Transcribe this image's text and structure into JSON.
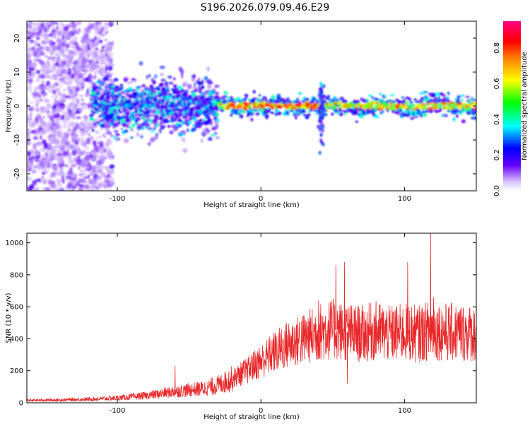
{
  "title": "S196.2026.079.09.46.E29",
  "colors": {
    "snr_line": "#e8282a",
    "axis": "#000000",
    "colormap": [
      "#ff00ff",
      "#6600ff",
      "#0000ff",
      "#00ffff",
      "#00ff00",
      "#ffff00",
      "#ff8000",
      "#ff0000",
      "#ff00ff"
    ]
  },
  "chart_data": [
    {
      "type": "heatmap",
      "xlabel": "Height of straight line (km)",
      "ylabel": "Frequency (Hz)",
      "xlim": [
        -163,
        150
      ],
      "ylim": [
        -25,
        25
      ],
      "xticks": [
        -100,
        0,
        100
      ],
      "xtick_labels": [
        "-100",
        "0",
        "100"
      ],
      "yticks": [
        -20,
        -10,
        0,
        10,
        20
      ],
      "ytick_labels": [
        "-20",
        "-10",
        "0",
        "10",
        "20"
      ],
      "colorbar": {
        "label": "Normalized spectral amplitude",
        "range": [
          0.0,
          0.95
        ],
        "ticks": [
          0.0,
          0.2,
          0.4,
          0.6,
          0.8
        ],
        "tick_labels": [
          "0.0",
          "0.2",
          "0.4",
          "0.6",
          "0.8"
        ]
      },
      "description": "Spectral amplitude concentrated near 0 Hz for heights above about -120 km; diffuse low-amplitude noise at lower heights; a spike near 40 km"
    },
    {
      "type": "line",
      "xlabel": "Height of straight line (km)",
      "ylabel": "SNR (10 * v/v)",
      "xlim": [
        -163,
        150
      ],
      "ylim": [
        0,
        1060
      ],
      "xticks": [
        -100,
        0,
        100
      ],
      "xtick_labels": [
        "-100",
        "0",
        "100"
      ],
      "yticks": [
        0,
        200,
        400,
        600,
        800,
        1000
      ],
      "ytick_labels": [
        "0",
        "200",
        "400",
        "600",
        "800",
        "1000"
      ],
      "series": [
        {
          "name": "SNR",
          "x": [
            -163,
            -140,
            -120,
            -100,
            -80,
            -60,
            -40,
            -30,
            -20,
            -10,
            0,
            10,
            20,
            30,
            40,
            50,
            60,
            70,
            80,
            90,
            100,
            110,
            120,
            130,
            140,
            150
          ],
          "y": [
            15,
            18,
            22,
            30,
            45,
            70,
            90,
            110,
            150,
            200,
            260,
            320,
            370,
            400,
            440,
            460,
            440,
            430,
            450,
            430,
            440,
            430,
            460,
            440,
            440,
            430
          ],
          "peaks": [
            [
              -60,
              230
            ],
            [
              40,
              640
            ],
            [
              52,
              860
            ],
            [
              58,
              880
            ],
            [
              60,
              120
            ],
            [
              102,
              880
            ],
            [
              118,
              1060
            ],
            [
              120,
              660
            ]
          ]
        }
      ]
    }
  ]
}
